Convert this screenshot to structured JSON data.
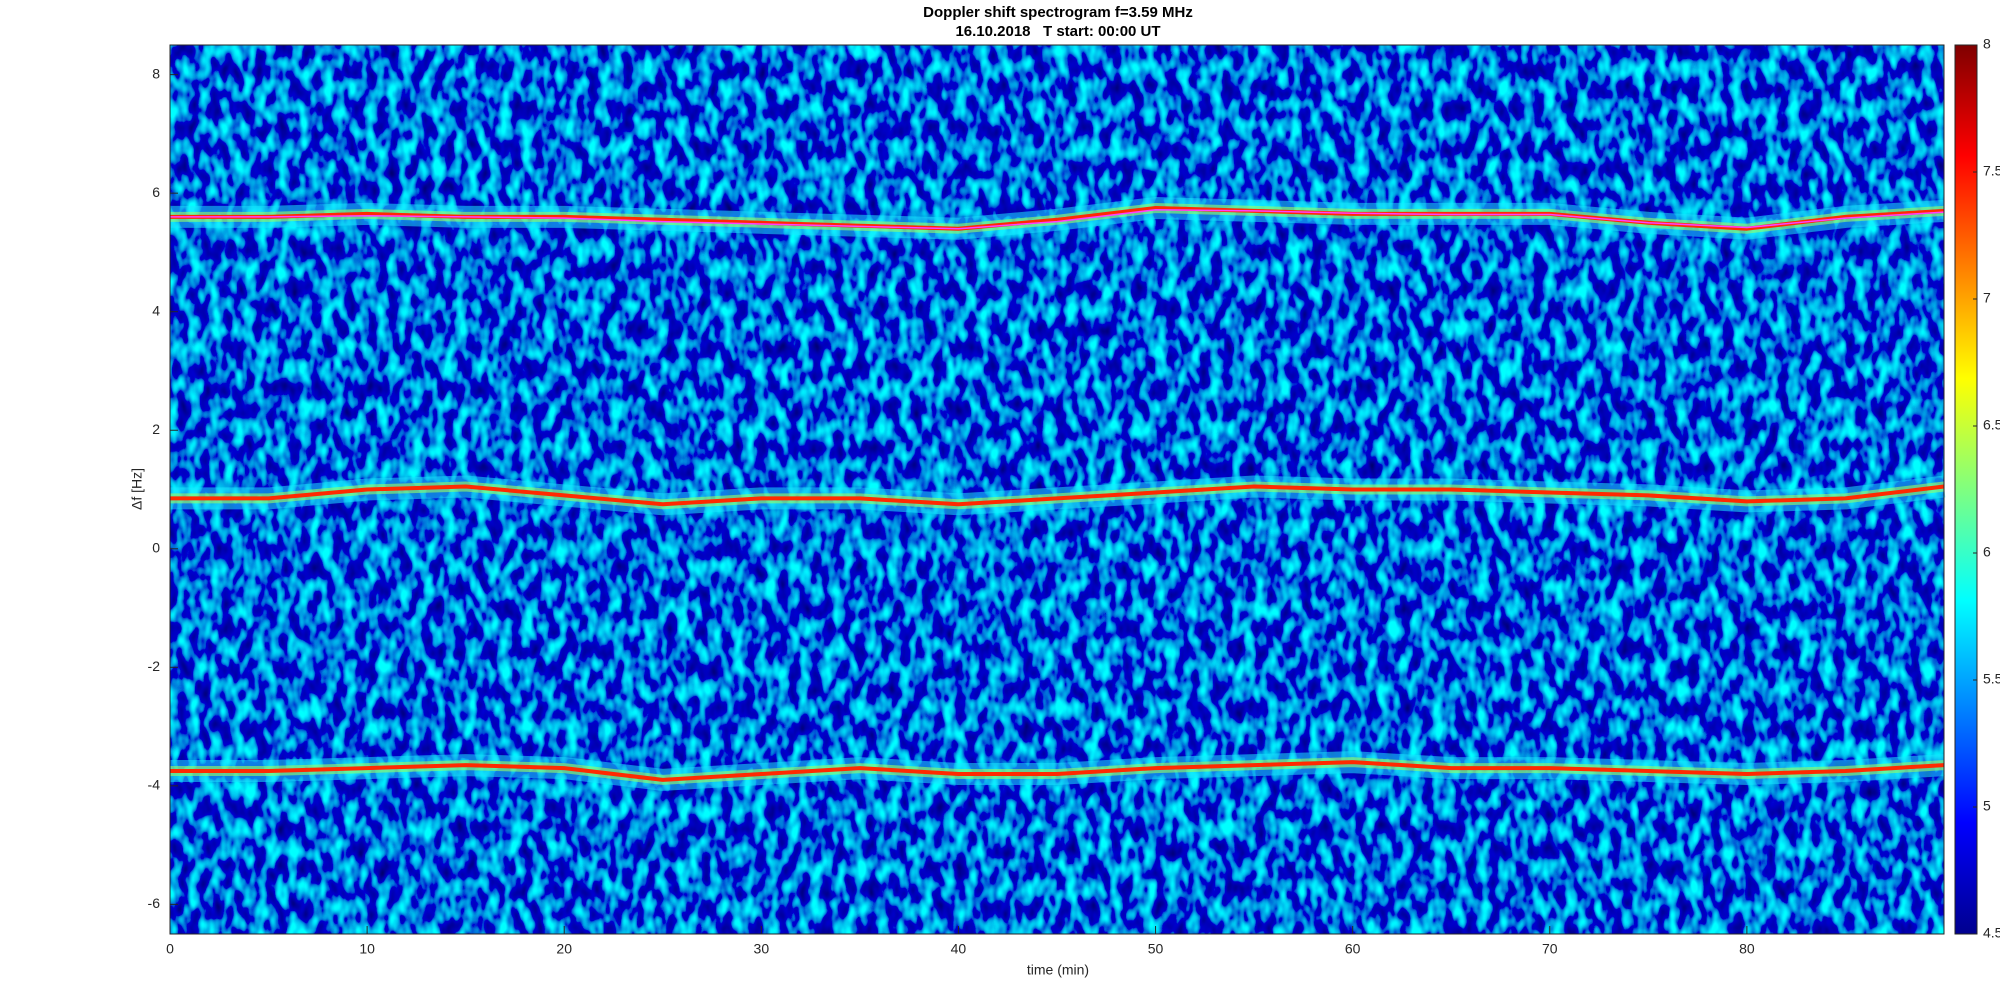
{
  "chart_data": {
    "type": "spectrogram",
    "title": "Doppler shift spectrogram f=3.59 MHz",
    "subtitle": "16.10.2018   T start: 00:00 UT",
    "x_label": "time (min)",
    "y_label": "Δf [Hz]",
    "xlim": [
      0,
      90
    ],
    "xticks": [
      0,
      10,
      20,
      30,
      40,
      50,
      60,
      70,
      80
    ],
    "ylim": [
      -6.5,
      8.5
    ],
    "yticks": [
      -6,
      -4,
      -2,
      0,
      2,
      4,
      6,
      8
    ],
    "colormap": "jet",
    "clim": [
      4.5,
      8
    ],
    "cticks": [
      4.5,
      5,
      5.5,
      6,
      6.5,
      7,
      7.5,
      8
    ],
    "x": [
      0,
      5,
      10,
      15,
      20,
      25,
      30,
      35,
      40,
      45,
      50,
      55,
      60,
      65,
      70,
      75,
      80,
      85,
      90
    ],
    "traces": [
      {
        "color": "#ff2a00",
        "values": [
          5.6,
          5.6,
          5.65,
          5.6,
          5.6,
          5.55,
          5.5,
          5.45,
          5.4,
          5.55,
          5.75,
          5.7,
          5.65,
          5.65,
          5.65,
          5.5,
          5.4,
          5.6,
          5.7
        ]
      },
      {
        "color": "#ff2a00",
        "values": [
          0.85,
          0.85,
          1.0,
          1.05,
          0.9,
          0.75,
          0.85,
          0.85,
          0.75,
          0.85,
          0.95,
          1.05,
          1.0,
          1.0,
          0.95,
          0.9,
          0.8,
          0.85,
          1.05
        ]
      },
      {
        "color": "#ff2a00",
        "values": [
          -3.75,
          -3.75,
          -3.7,
          -3.65,
          -3.7,
          -3.9,
          -3.8,
          -3.7,
          -3.8,
          -3.8,
          -3.7,
          -3.65,
          -3.6,
          -3.7,
          -3.7,
          -3.75,
          -3.8,
          -3.75,
          -3.65
        ]
      }
    ],
    "fit": {
      "color": "#ff40ff",
      "values": [
        5.6,
        5.6,
        5.62,
        5.6,
        5.58,
        5.52,
        5.48,
        5.44,
        5.4,
        5.52,
        5.72,
        5.7,
        5.66,
        5.64,
        5.64,
        5.5,
        5.42,
        5.58,
        5.68
      ]
    }
  }
}
